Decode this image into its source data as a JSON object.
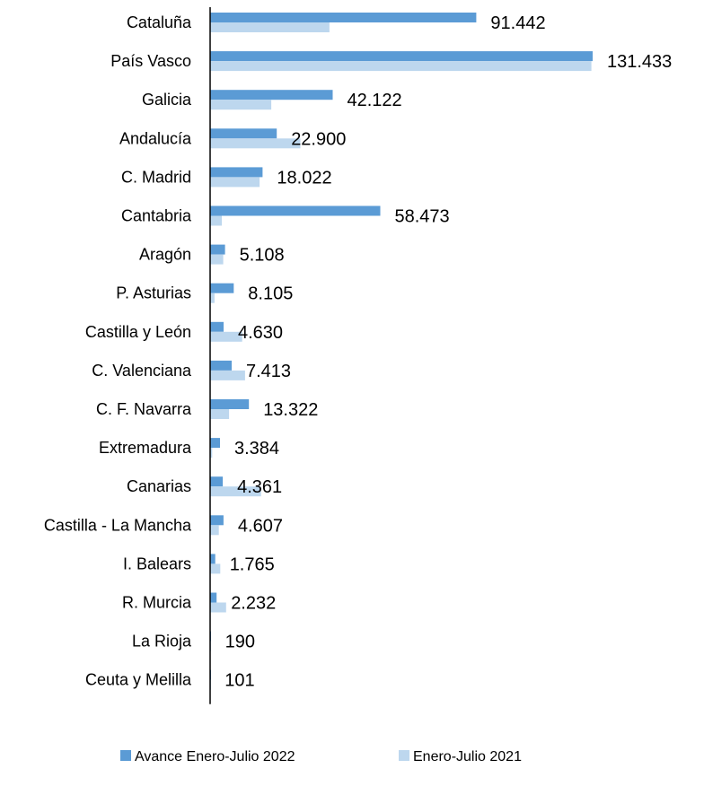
{
  "chart_data": {
    "type": "bar",
    "orientation": "horizontal",
    "categories": [
      "Cataluña",
      "País Vasco",
      "Galicia",
      "Andalucía",
      "C. Madrid",
      "Cantabria",
      "Aragón",
      "P. Asturias",
      "Castilla y León",
      "C. Valenciana",
      "C. F. Navarra",
      "Extremadura",
      "Canarias",
      "Castilla - La Mancha",
      "I. Balears",
      "R. Murcia",
      "La Rioja",
      "Ceuta y Melilla"
    ],
    "series": [
      {
        "name": "Avance Enero-Julio 2022",
        "color": "#5b9bd5",
        "values": [
          91442,
          131433,
          42122,
          22900,
          18022,
          58473,
          5108,
          8105,
          4630,
          7413,
          13322,
          3384,
          4361,
          4607,
          1765,
          2232,
          190,
          101
        ],
        "labels": [
          "91.442",
          "131.433",
          "42.122",
          "22.900",
          "18.022",
          "58.473",
          "5.108",
          "8.105",
          "4.630",
          "7.413",
          "13.322",
          "3.384",
          "4.361",
          "4.607",
          "1.765",
          "2.232",
          "190",
          "101"
        ]
      },
      {
        "name": "Enero-Julio 2021",
        "color": "#bdd7ee",
        "values": [
          41000,
          131000,
          21000,
          31000,
          17000,
          4000,
          4500,
          1500,
          11000,
          12000,
          6500,
          700,
          17500,
          3000,
          3500,
          5500,
          300,
          100
        ]
      }
    ],
    "xlim": [
      0,
      131433
    ],
    "grid": false,
    "legend_position": "bottom"
  }
}
